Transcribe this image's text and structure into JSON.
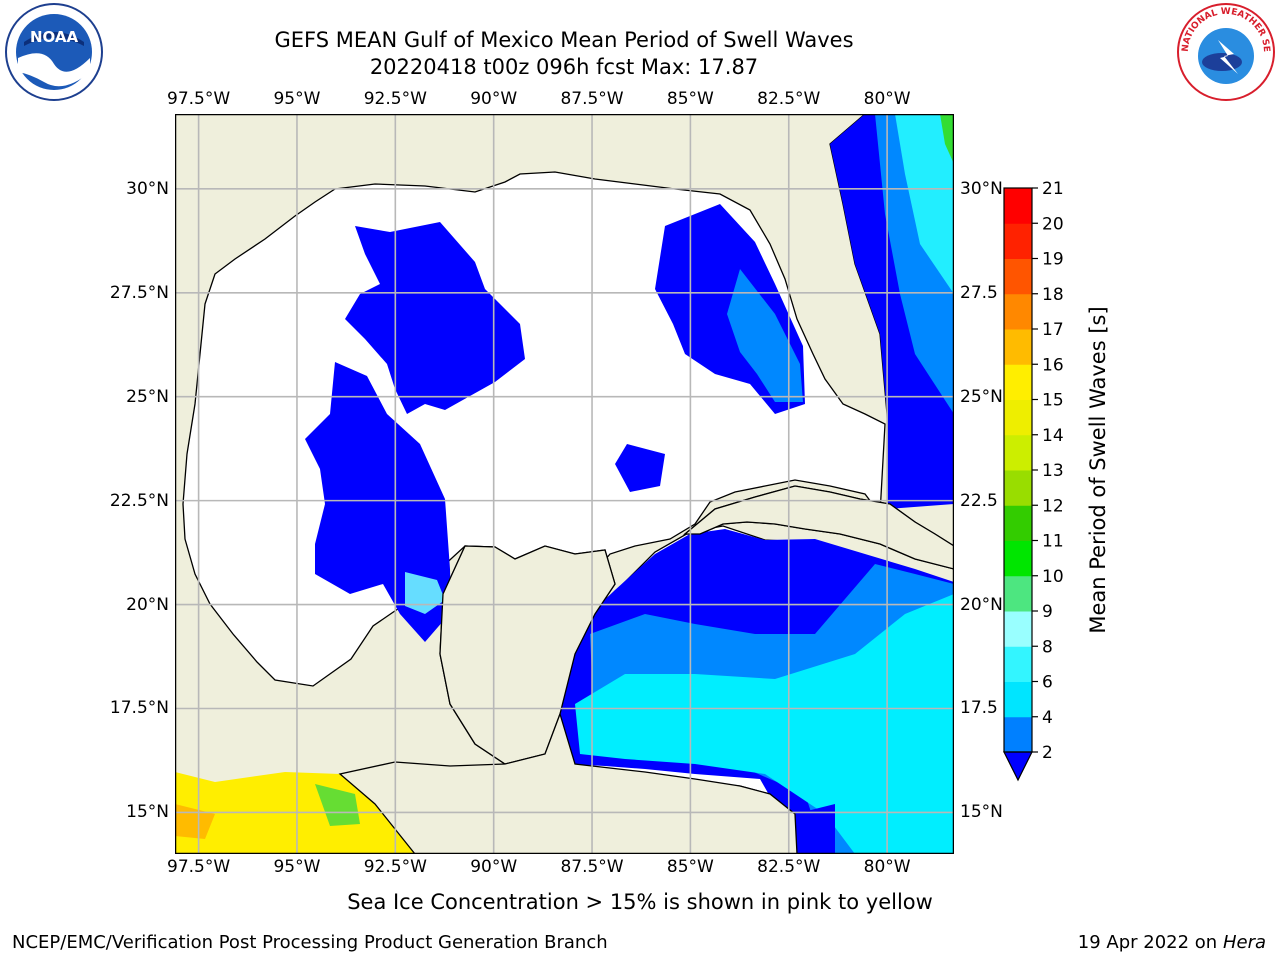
{
  "title_line1": "GEFS MEAN Gulf of Mexico Mean Period of Swell Waves",
  "title_line2": "20220418 t00z 096h fcst   Max: 17.87",
  "map": {
    "lon_labels": [
      "97.5°W",
      "95°W",
      "92.5°W",
      "90°W",
      "87.5°W",
      "85°W",
      "82.5°W",
      "80°W"
    ],
    "lon_values": [
      -97.5,
      -95,
      -92.5,
      -90,
      -87.5,
      -85,
      -82.5,
      -80
    ],
    "lat_labels_left": [
      "30°N",
      "27.5°N",
      "25°N",
      "22.5°N",
      "20°N",
      "17.5°N",
      "15°N"
    ],
    "lat_labels_right": [
      "30°N",
      "27.5",
      "25°N",
      "22.5",
      "20°N",
      "17.5",
      "15°N"
    ],
    "lat_values": [
      30,
      27.5,
      25,
      22.5,
      20,
      17.5,
      15
    ],
    "extent": {
      "lon_min": -98.1,
      "lon_max": -78.3,
      "lat_min": 14.0,
      "lat_max": 31.8
    },
    "grid": true,
    "land_color": "#efefdc",
    "ocean_color": "#ffffff"
  },
  "colorbar": {
    "label": "Mean Period of Swell Waves [s]",
    "ticks": [
      "2",
      "4",
      "6",
      "8",
      "9",
      "10",
      "11",
      "12",
      "13",
      "14",
      "15",
      "16",
      "17",
      "18",
      "19",
      "20",
      "21"
    ],
    "colors": [
      "#0033ff",
      "#0080ff",
      "#00e5ff",
      "#33f5ff",
      "#99ffff",
      "#4de680",
      "#00e600",
      "#33cc00",
      "#99dd00",
      "#ccee00",
      "#eeee00",
      "#ffee00",
      "#ffbb00",
      "#ff8800",
      "#ff5500",
      "#ff2200",
      "#ff0000"
    ],
    "extend_color": "#0000ff"
  },
  "note": "Sea Ice Concentration > 15% is shown in pink to yellow",
  "footer_left": "NCEP/EMC/Verification Post Processing Product Generation Branch",
  "footer_right_date": "19 Apr 2022 on",
  "footer_right_host": "Hera",
  "logos": {
    "left": "NOAA",
    "right": "NATIONAL WEATHER SERVICE"
  }
}
